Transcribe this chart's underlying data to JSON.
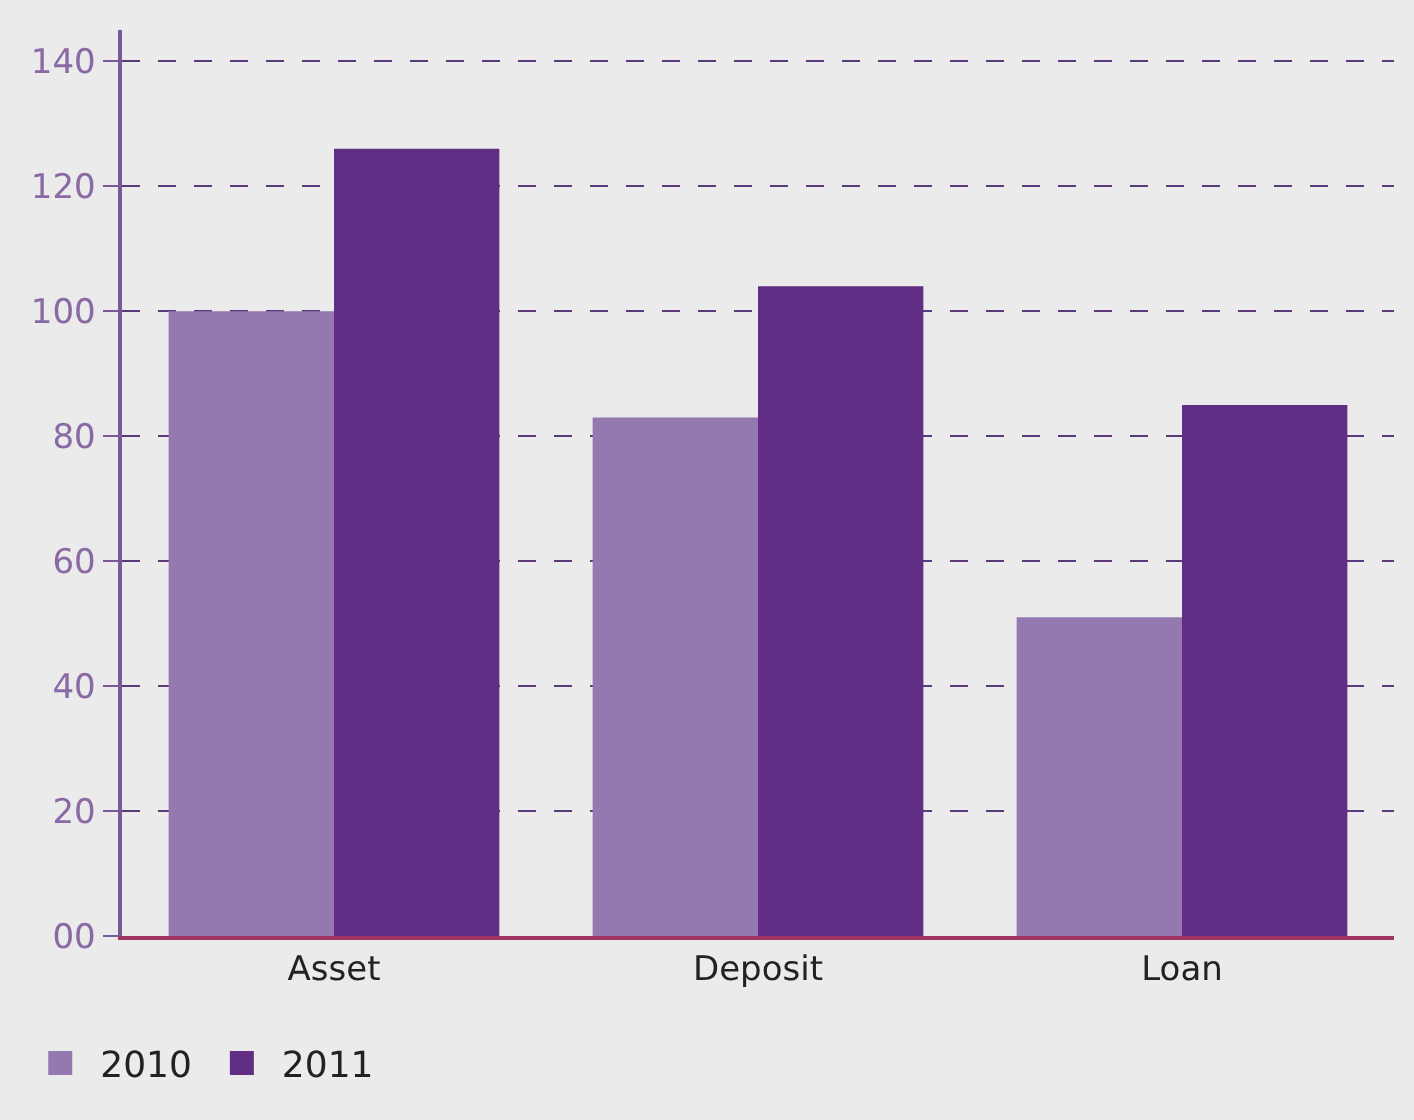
{
  "chart_data": {
    "type": "bar",
    "categories": [
      "Asset",
      "Deposit",
      "Loan"
    ],
    "series": [
      {
        "name": "2010",
        "color": "#9479b0",
        "values": [
          100,
          83,
          51
        ]
      },
      {
        "name": "2011",
        "color": "#622d85",
        "values": [
          126,
          104,
          85
        ]
      }
    ],
    "ylim": [
      0,
      145
    ],
    "yticks": [
      {
        "value": 0,
        "label": "00"
      },
      20,
      40,
      60,
      80,
      100,
      120,
      140
    ],
    "grid": "y",
    "legend": "bottom left"
  }
}
